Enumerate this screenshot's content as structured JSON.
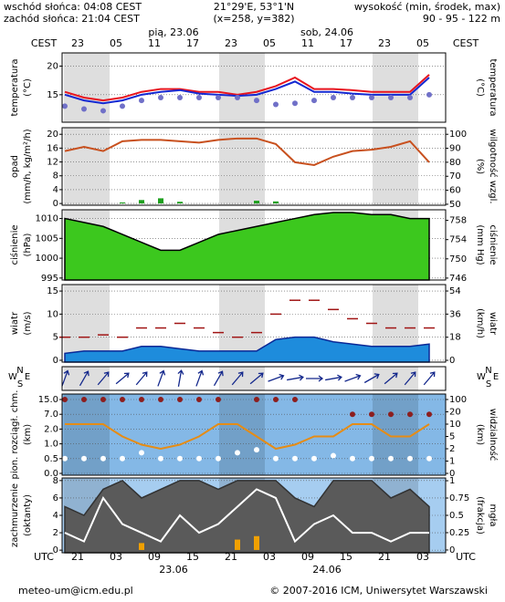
{
  "header": {
    "sunrise": "wschód słońca: 04:08 CEST",
    "sunset": "zachód słońca: 21:04 CEST",
    "coords": "21°29'E, 53°1'N",
    "grid_point": "(x=258, y=382)",
    "elevation_label": "wysokość (min, środek, max)",
    "elevation": "90 - 95 - 122 m"
  },
  "time_axis": {
    "top_zone": "CEST",
    "top_hours": [
      "23",
      "05",
      "11",
      "17",
      "23",
      "05",
      "11",
      "17",
      "23",
      "05"
    ],
    "days": [
      "pią, 23.06",
      "sob, 24.06"
    ],
    "bottom_zone": "UTC",
    "bottom_hours": [
      "21",
      "03",
      "09",
      "15",
      "21",
      "03",
      "09",
      "15",
      "21",
      "03"
    ],
    "dates": [
      "23.06",
      "24.06"
    ]
  },
  "chart_data": [
    {
      "type": "line",
      "ylabel": [
        "temperatura",
        "(°C)"
      ],
      "y2label": [
        "(°C)",
        "temperatura"
      ],
      "ylim": [
        10.2,
        22.3
      ],
      "yticks": [
        15,
        20
      ],
      "grid": true,
      "series": [
        {
          "color": "#e8141e",
          "values": [
            15.5,
            14.5,
            14,
            14.5,
            15.5,
            16,
            16,
            15.5,
            15.5,
            15,
            15.5,
            16.5,
            18,
            16,
            16,
            15.8,
            15.5,
            15.5,
            15.5,
            18.5
          ]
        },
        {
          "color": "#1428d2",
          "values": [
            15,
            14,
            13.5,
            14,
            15,
            15.5,
            15.8,
            15.2,
            15,
            14.8,
            15,
            16,
            17.3,
            15.5,
            15.5,
            15.2,
            15,
            15,
            15,
            18
          ]
        },
        {
          "type": "scatter",
          "color": "#7070c8",
          "values": [
            13,
            12.5,
            12.2,
            13,
            14,
            14.5,
            14.5,
            14.5,
            14.5,
            14.5,
            14,
            13.3,
            13.5,
            14,
            14.5,
            14.5,
            14.5,
            14.5,
            14.5,
            15
          ]
        }
      ]
    },
    {
      "type": "bar",
      "ylabel": [
        "opad",
        "(mm/h, kg/m²/h)"
      ],
      "y2label": [
        "(%)",
        "wilgotność wzgl."
      ],
      "ylim": [
        -0.5,
        21.9
      ],
      "yticks": [
        0,
        4,
        8,
        12,
        16,
        20
      ],
      "y2lim": [
        49.3,
        104.7
      ],
      "y2ticks": [
        50,
        60,
        70,
        80,
        90,
        100
      ],
      "grid": true,
      "series": [
        {
          "color": "#1ea01e",
          "values": [
            0,
            0,
            0,
            0.3,
            1,
            1.5,
            0.5,
            0,
            0,
            0,
            0.8,
            0.6,
            0,
            0,
            0,
            0,
            0,
            0,
            0,
            0
          ]
        },
        {
          "type": "line",
          "axis": "y2",
          "color": "#c8501e",
          "values": [
            88,
            91,
            88,
            95,
            96,
            96,
            95,
            94,
            96,
            97,
            97,
            93,
            80,
            78,
            84,
            88,
            89,
            91,
            95,
            80
          ]
        }
      ]
    },
    {
      "type": "area",
      "ylabel": [
        "ciśnienie",
        "(hPa)"
      ],
      "y2label": [
        "(mm Hg)",
        "ciśnienie"
      ],
      "ylim": [
        994.5,
        1012.2
      ],
      "yticks": [
        995,
        1000,
        1005,
        1010
      ],
      "y2lim": [
        745.6,
        760.2
      ],
      "y2ticks": [
        746,
        750,
        754,
        758
      ],
      "grid": true,
      "series": [
        {
          "color": "#3cc81e",
          "edge": "#000000",
          "values": [
            1010,
            1009,
            1008,
            1006,
            1004,
            1002,
            1002,
            1004,
            1006,
            1007,
            1008,
            1009,
            1010,
            1011,
            1011.5,
            1011.5,
            1011,
            1011,
            1010,
            1010
          ]
        }
      ]
    },
    {
      "type": "area",
      "ylabel": [
        "wiatr",
        "(m/s)"
      ],
      "y2label": [
        "(km/h)",
        "wiatr"
      ],
      "ylim": [
        -0.4,
        16.4
      ],
      "yticks": [
        0,
        5,
        10,
        15
      ],
      "y2lim": [
        -1.4,
        59
      ],
      "y2ticks": [
        0,
        18,
        36,
        54
      ],
      "grid": true,
      "series": [
        {
          "color": "#1e8cdc",
          "edge": "#0a2896",
          "values": [
            1.5,
            2,
            2,
            2,
            3,
            3,
            2.5,
            2,
            2,
            2,
            2,
            4.5,
            5,
            5,
            4,
            3.5,
            3,
            3,
            3,
            3.5
          ]
        },
        {
          "type": "dash",
          "color": "#a01414",
          "values": [
            5,
            5,
            5.5,
            5,
            7,
            7,
            8,
            7,
            6,
            5,
            6,
            10,
            13,
            13,
            11,
            9,
            8,
            7,
            7,
            7
          ]
        }
      ]
    },
    {
      "type": "arrows",
      "compass": [
        "W",
        "N",
        "E",
        "S"
      ],
      "series": [
        {
          "color": "#14288c",
          "values": [
            200,
            210,
            220,
            230,
            220,
            200,
            190,
            200,
            210,
            220,
            230,
            250,
            260,
            270,
            260,
            250,
            240,
            230,
            220,
            220
          ]
        }
      ]
    },
    {
      "type": "scatter",
      "ylabel": [
        "pion. rozciągł. chm.",
        "(km)"
      ],
      "y2label": [
        "(km)",
        "widzialność"
      ],
      "yscale": "piecewise",
      "y2scale": "piecewise",
      "yticks": [
        {
          "value": 15,
          "label": "15.0"
        },
        {
          "value": 7,
          "label": "7.0"
        },
        {
          "value": 2,
          "label": "2.0"
        },
        {
          "value": 1,
          "label": "1.0"
        },
        {
          "value": 0.5,
          "label": "0.5"
        },
        {
          "value": 0,
          "label": "0.0"
        }
      ],
      "y2ticks": [
        100,
        20,
        10,
        5,
        2,
        1,
        0
      ],
      "grid": true,
      "series": [
        {
          "color": "#8c1e1e",
          "values": [
            15,
            15,
            15,
            15,
            15,
            15,
            15,
            15,
            15,
            null,
            15,
            15,
            15,
            null,
            null,
            7,
            7,
            7,
            7,
            7
          ]
        },
        {
          "color": "#ffffff",
          "values": [
            0.5,
            0.5,
            0.5,
            0.5,
            0.7,
            0.5,
            0.5,
            0.5,
            0.5,
            0.7,
            0.8,
            0.5,
            0.5,
            0.5,
            0.6,
            0.5,
            0.5,
            0.5,
            0.5,
            0.5
          ]
        },
        {
          "type": "line",
          "axis": "y2",
          "color": "#e68c14",
          "values": [
            10,
            10,
            10,
            5,
            3,
            2,
            3,
            5,
            10,
            10,
            5,
            2,
            3,
            5,
            5,
            10,
            10,
            5,
            5,
            10
          ]
        }
      ]
    },
    {
      "type": "area",
      "ylabel": [
        "zachmurzenie",
        "(oktanty)"
      ],
      "y2label": [
        "(frakcja)",
        "mgła"
      ],
      "ylim": [
        -0.3,
        8.3
      ],
      "yticks": [
        0,
        2,
        4,
        6,
        8
      ],
      "y2lim": [
        -0.04,
        1.04
      ],
      "y2ticks": [
        0,
        0.25,
        0.5,
        0.75,
        1
      ],
      "grid": true,
      "series": [
        {
          "color": "#5a5a5a",
          "edge": "#323232",
          "values": [
            5,
            4,
            7,
            8,
            6,
            7,
            8,
            8,
            7,
            8,
            8,
            8,
            6,
            5,
            8,
            8,
            8,
            6,
            7,
            5
          ]
        },
        {
          "type": "line",
          "color": "#ffffff",
          "values": [
            2,
            1,
            6,
            3,
            2,
            1,
            4,
            2,
            3,
            5,
            7,
            6,
            1,
            3,
            4,
            2,
            2,
            1,
            2,
            2
          ]
        },
        {
          "type": "bar",
          "axis": "y2",
          "color": "#f0a000",
          "values": [
            0,
            0,
            0,
            0,
            0.1,
            0,
            0,
            0,
            0,
            0.15,
            0.2,
            0,
            0,
            0,
            0,
            0,
            0,
            0,
            0,
            0
          ]
        }
      ]
    }
  ],
  "footer": {
    "email": "meteo-um@icm.edu.pl",
    "copyright": "© 2007-2016 ICM, Uniwersytet Warszawski"
  }
}
